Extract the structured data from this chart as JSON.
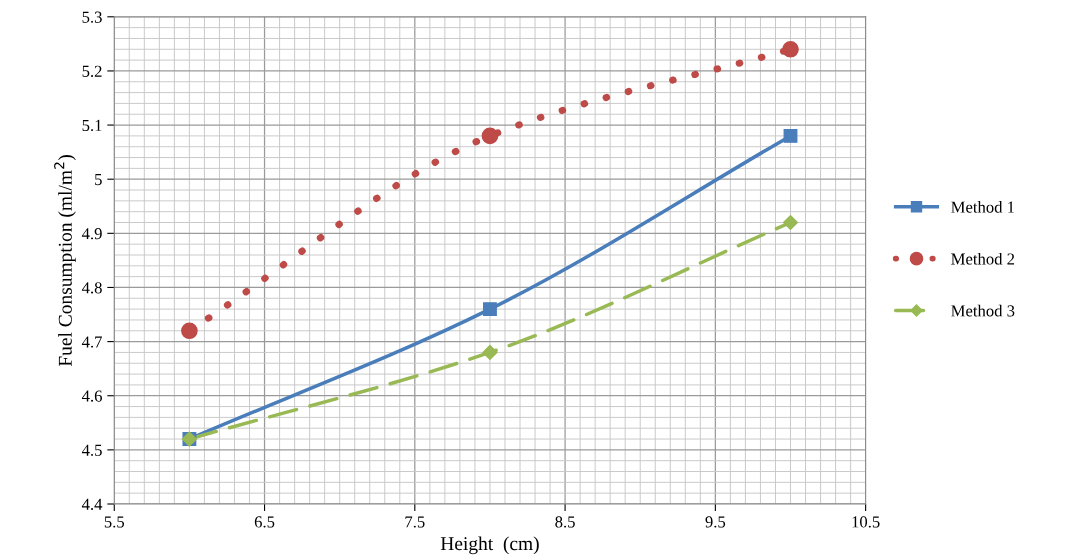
{
  "chart_data": {
    "type": "line",
    "xlabel": "Height  (cm)",
    "ylabel": "Fuel Consumption (ml/m$^{2}$)",
    "x": [
      6,
      8,
      10
    ],
    "series": [
      {
        "name": "Method 1",
        "color": "#4a7ebb",
        "values": [
          4.52,
          4.76,
          5.08
        ],
        "marker": "square",
        "line_style": "solid"
      },
      {
        "name": "Method 2",
        "color": "#be4b48",
        "values": [
          4.72,
          5.08,
          5.24
        ],
        "marker": "circle",
        "line_style": "dotted"
      },
      {
        "name": "Method 3",
        "color": "#98b954",
        "values": [
          4.52,
          4.68,
          4.92
        ],
        "marker": "diamond",
        "line_style": "dashed"
      }
    ],
    "xlim": [
      5.5,
      10.5
    ],
    "xticks": [
      5.5,
      6.5,
      7.5,
      8.5,
      9.5,
      10.5
    ],
    "ylim": [
      4.4,
      5.3
    ],
    "yticks": [
      4.4,
      4.5,
      4.6,
      4.7,
      4.8,
      4.9,
      5,
      5.1,
      5.2,
      5.3
    ],
    "grid": true,
    "legend": "right"
  }
}
